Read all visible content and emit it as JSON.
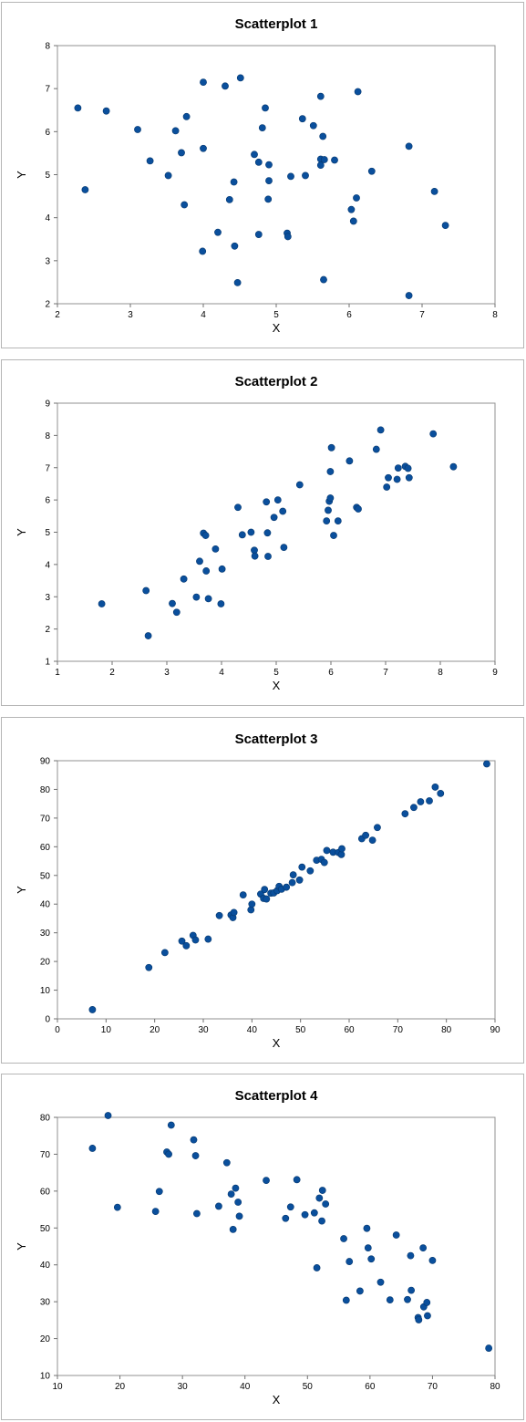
{
  "chart_data": [
    {
      "type": "scatter",
      "title": "Scatterplot 1",
      "xlabel": "X",
      "ylabel": "Y",
      "xlim": [
        2,
        8
      ],
      "ylim": [
        2,
        8
      ],
      "xticks": [
        2,
        3,
        4,
        5,
        6,
        7,
        8
      ],
      "yticks": [
        2,
        3,
        4,
        5,
        6,
        7,
        8
      ],
      "grid": false,
      "marker_color": "#0a4f9c",
      "points": [
        [
          2.28,
          6.55
        ],
        [
          2.38,
          4.65
        ],
        [
          2.67,
          6.48
        ],
        [
          3.1,
          6.05
        ],
        [
          3.27,
          5.32
        ],
        [
          3.52,
          4.98
        ],
        [
          3.62,
          6.02
        ],
        [
          3.7,
          5.51
        ],
        [
          3.74,
          4.3
        ],
        [
          3.77,
          6.35
        ],
        [
          3.99,
          3.22
        ],
        [
          4.0,
          7.15
        ],
        [
          4.0,
          5.61
        ],
        [
          4.2,
          3.66
        ],
        [
          4.3,
          7.06
        ],
        [
          4.36,
          4.42
        ],
        [
          4.42,
          4.83
        ],
        [
          4.43,
          3.34
        ],
        [
          4.47,
          2.49
        ],
        [
          4.51,
          7.25
        ],
        [
          4.7,
          5.47
        ],
        [
          4.76,
          5.29
        ],
        [
          4.76,
          3.61
        ],
        [
          4.81,
          6.09
        ],
        [
          4.85,
          6.55
        ],
        [
          4.89,
          4.43
        ],
        [
          4.9,
          4.86
        ],
        [
          4.9,
          5.23
        ],
        [
          5.15,
          3.64
        ],
        [
          5.16,
          3.56
        ],
        [
          5.2,
          4.96
        ],
        [
          5.36,
          6.3
        ],
        [
          5.4,
          4.98
        ],
        [
          5.51,
          6.14
        ],
        [
          5.61,
          6.82
        ],
        [
          5.61,
          5.36
        ],
        [
          5.61,
          5.22
        ],
        [
          5.64,
          5.89
        ],
        [
          5.66,
          5.35
        ],
        [
          5.65,
          2.56
        ],
        [
          5.8,
          5.34
        ],
        [
          6.03,
          4.19
        ],
        [
          6.06,
          3.92
        ],
        [
          6.1,
          4.46
        ],
        [
          6.12,
          6.93
        ],
        [
          6.31,
          5.08
        ],
        [
          6.82,
          5.66
        ],
        [
          6.82,
          2.19
        ],
        [
          7.17,
          4.61
        ],
        [
          7.32,
          3.82
        ]
      ]
    },
    {
      "type": "scatter",
      "title": "Scatterplot 2",
      "xlabel": "X",
      "ylabel": "Y",
      "xlim": [
        1,
        9
      ],
      "ylim": [
        1,
        9
      ],
      "xticks": [
        1,
        2,
        3,
        4,
        5,
        6,
        7,
        8,
        9
      ],
      "yticks": [
        1,
        2,
        3,
        4,
        5,
        6,
        7,
        8,
        9
      ],
      "grid": false,
      "marker_color": "#0a4f9c",
      "points": [
        [
          1.81,
          2.78
        ],
        [
          2.62,
          3.19
        ],
        [
          2.66,
          1.79
        ],
        [
          3.1,
          2.79
        ],
        [
          3.18,
          2.52
        ],
        [
          3.31,
          3.55
        ],
        [
          3.54,
          2.99
        ],
        [
          3.6,
          4.1
        ],
        [
          3.67,
          4.97
        ],
        [
          3.71,
          4.9
        ],
        [
          3.72,
          3.8
        ],
        [
          3.76,
          2.94
        ],
        [
          3.89,
          4.48
        ],
        [
          3.99,
          2.78
        ],
        [
          4.01,
          3.86
        ],
        [
          4.3,
          5.77
        ],
        [
          4.38,
          4.92
        ],
        [
          4.54,
          5.0
        ],
        [
          4.6,
          4.44
        ],
        [
          4.61,
          4.26
        ],
        [
          4.82,
          5.94
        ],
        [
          4.84,
          4.98
        ],
        [
          4.85,
          4.25
        ],
        [
          4.96,
          5.46
        ],
        [
          5.03,
          6.0
        ],
        [
          5.12,
          5.65
        ],
        [
          5.14,
          4.53
        ],
        [
          5.43,
          6.47
        ],
        [
          5.92,
          5.35
        ],
        [
          5.95,
          5.68
        ],
        [
          5.97,
          5.96
        ],
        [
          5.99,
          6.06
        ],
        [
          5.99,
          6.88
        ],
        [
          6.01,
          7.62
        ],
        [
          6.05,
          4.9
        ],
        [
          6.13,
          5.35
        ],
        [
          6.34,
          7.21
        ],
        [
          6.47,
          5.77
        ],
        [
          6.5,
          5.72
        ],
        [
          6.83,
          7.57
        ],
        [
          6.91,
          8.17
        ],
        [
          7.02,
          6.4
        ],
        [
          7.05,
          6.69
        ],
        [
          7.21,
          6.64
        ],
        [
          7.23,
          6.99
        ],
        [
          7.36,
          7.04
        ],
        [
          7.41,
          6.98
        ],
        [
          7.43,
          6.69
        ],
        [
          7.87,
          8.05
        ],
        [
          8.24,
          7.03
        ]
      ]
    },
    {
      "type": "scatter",
      "title": "Scatterplot 3",
      "xlabel": "X",
      "ylabel": "Y",
      "xlim": [
        0,
        90
      ],
      "ylim": [
        0,
        90
      ],
      "xticks": [
        0,
        10,
        20,
        30,
        40,
        50,
        60,
        70,
        80,
        90
      ],
      "yticks": [
        0,
        10,
        20,
        30,
        40,
        50,
        60,
        70,
        80,
        90
      ],
      "grid": false,
      "marker_color": "#0a4f9c",
      "points": [
        [
          7.2,
          3.2
        ],
        [
          18.8,
          17.9
        ],
        [
          22.1,
          23.1
        ],
        [
          25.6,
          27.1
        ],
        [
          26.5,
          25.5
        ],
        [
          27.9,
          29.1
        ],
        [
          28.4,
          27.5
        ],
        [
          31.0,
          27.8
        ],
        [
          33.3,
          36.0
        ],
        [
          35.7,
          36.2
        ],
        [
          36.1,
          35.3
        ],
        [
          36.3,
          37.1
        ],
        [
          38.2,
          43.2
        ],
        [
          39.8,
          38.0
        ],
        [
          40.0,
          40.0
        ],
        [
          41.8,
          43.5
        ],
        [
          42.4,
          42.0
        ],
        [
          42.6,
          45.1
        ],
        [
          43.0,
          41.8
        ],
        [
          43.9,
          43.8
        ],
        [
          44.5,
          43.9
        ],
        [
          45.2,
          44.7
        ],
        [
          45.6,
          46.2
        ],
        [
          46.1,
          45.2
        ],
        [
          47.1,
          45.9
        ],
        [
          48.3,
          47.5
        ],
        [
          48.5,
          50.2
        ],
        [
          49.8,
          48.4
        ],
        [
          50.3,
          52.9
        ],
        [
          52.0,
          51.6
        ],
        [
          53.3,
          55.3
        ],
        [
          54.3,
          55.6
        ],
        [
          54.9,
          54.5
        ],
        [
          55.4,
          58.7
        ],
        [
          56.7,
          58.1
        ],
        [
          57.8,
          58.0
        ],
        [
          58.4,
          57.3
        ],
        [
          58.5,
          59.3
        ],
        [
          62.6,
          62.8
        ],
        [
          63.4,
          64.0
        ],
        [
          64.8,
          62.3
        ],
        [
          65.8,
          66.7
        ],
        [
          71.5,
          71.5
        ],
        [
          73.3,
          73.7
        ],
        [
          74.7,
          75.7
        ],
        [
          76.5,
          76.0
        ],
        [
          77.7,
          80.8
        ],
        [
          78.8,
          78.6
        ],
        [
          88.3,
          88.9
        ]
      ]
    },
    {
      "type": "scatter",
      "title": "Scatterplot 4",
      "xlabel": "X",
      "ylabel": "Y",
      "xlim": [
        10,
        80
      ],
      "ylim": [
        10,
        80
      ],
      "xticks": [
        10,
        20,
        30,
        40,
        50,
        60,
        70,
        80
      ],
      "yticks": [
        10,
        20,
        30,
        40,
        50,
        60,
        70,
        80
      ],
      "grid": false,
      "marker_color": "#0a4f9c",
      "points": [
        [
          15.6,
          71.6
        ],
        [
          18.1,
          80.5
        ],
        [
          19.6,
          55.6
        ],
        [
          25.7,
          54.5
        ],
        [
          26.3,
          59.9
        ],
        [
          27.5,
          70.6
        ],
        [
          27.8,
          70.0
        ],
        [
          28.2,
          77.9
        ],
        [
          31.8,
          73.9
        ],
        [
          32.1,
          69.6
        ],
        [
          32.3,
          53.9
        ],
        [
          35.8,
          55.9
        ],
        [
          37.1,
          67.7
        ],
        [
          37.8,
          59.2
        ],
        [
          38.1,
          49.6
        ],
        [
          38.5,
          60.8
        ],
        [
          38.9,
          57.0
        ],
        [
          39.1,
          53.2
        ],
        [
          43.4,
          62.9
        ],
        [
          46.5,
          52.6
        ],
        [
          47.3,
          55.7
        ],
        [
          48.3,
          63.1
        ],
        [
          49.6,
          53.6
        ],
        [
          51.1,
          54.1
        ],
        [
          51.5,
          39.2
        ],
        [
          51.9,
          58.1
        ],
        [
          52.3,
          51.9
        ],
        [
          52.4,
          60.2
        ],
        [
          52.9,
          56.5
        ],
        [
          55.8,
          47.1
        ],
        [
          56.2,
          30.4
        ],
        [
          56.7,
          40.9
        ],
        [
          58.4,
          32.9
        ],
        [
          59.5,
          49.9
        ],
        [
          59.7,
          44.6
        ],
        [
          60.2,
          41.6
        ],
        [
          61.7,
          35.3
        ],
        [
          63.2,
          30.5
        ],
        [
          64.2,
          48.1
        ],
        [
          66.0,
          30.6
        ],
        [
          66.5,
          42.5
        ],
        [
          66.6,
          33.1
        ],
        [
          67.7,
          25.7
        ],
        [
          67.8,
          25.1
        ],
        [
          68.5,
          44.6
        ],
        [
          68.6,
          28.6
        ],
        [
          69.1,
          29.8
        ],
        [
          69.2,
          26.2
        ],
        [
          70.0,
          41.2
        ],
        [
          79.0,
          17.4
        ]
      ]
    }
  ]
}
